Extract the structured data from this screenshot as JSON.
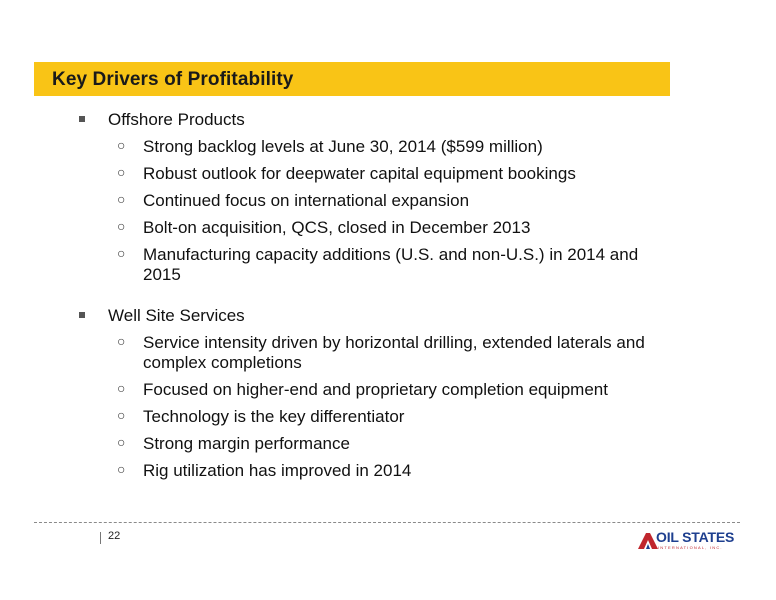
{
  "title": "Key Drivers of Profitability",
  "sections": [
    {
      "heading": "Offshore Products",
      "items": [
        "Strong backlog levels at June 30, 2014 ($599 million)",
        "Robust outlook for deepwater capital equipment bookings",
        "Continued focus on international expansion",
        "Bolt-on acquisition, QCS, closed in December 2013",
        "Manufacturing capacity additions (U.S. and non-U.S.) in 2014 and 2015"
      ]
    },
    {
      "heading": "Well Site Services",
      "items": [
        "Service intensity driven by horizontal drilling, extended laterals and complex completions",
        "Focused on higher-end and proprietary completion equipment",
        "Technology is the key differentiator",
        "Strong margin performance",
        "Rig utilization has improved in 2014"
      ]
    }
  ],
  "footer": {
    "page_number": "22",
    "logo_name": "OIL STATES",
    "logo_tagline": "INTERNATIONAL, INC."
  },
  "colors": {
    "title_bar": "#f9c416",
    "logo_blue": "#1e3f8f",
    "logo_red": "#c0262d"
  }
}
